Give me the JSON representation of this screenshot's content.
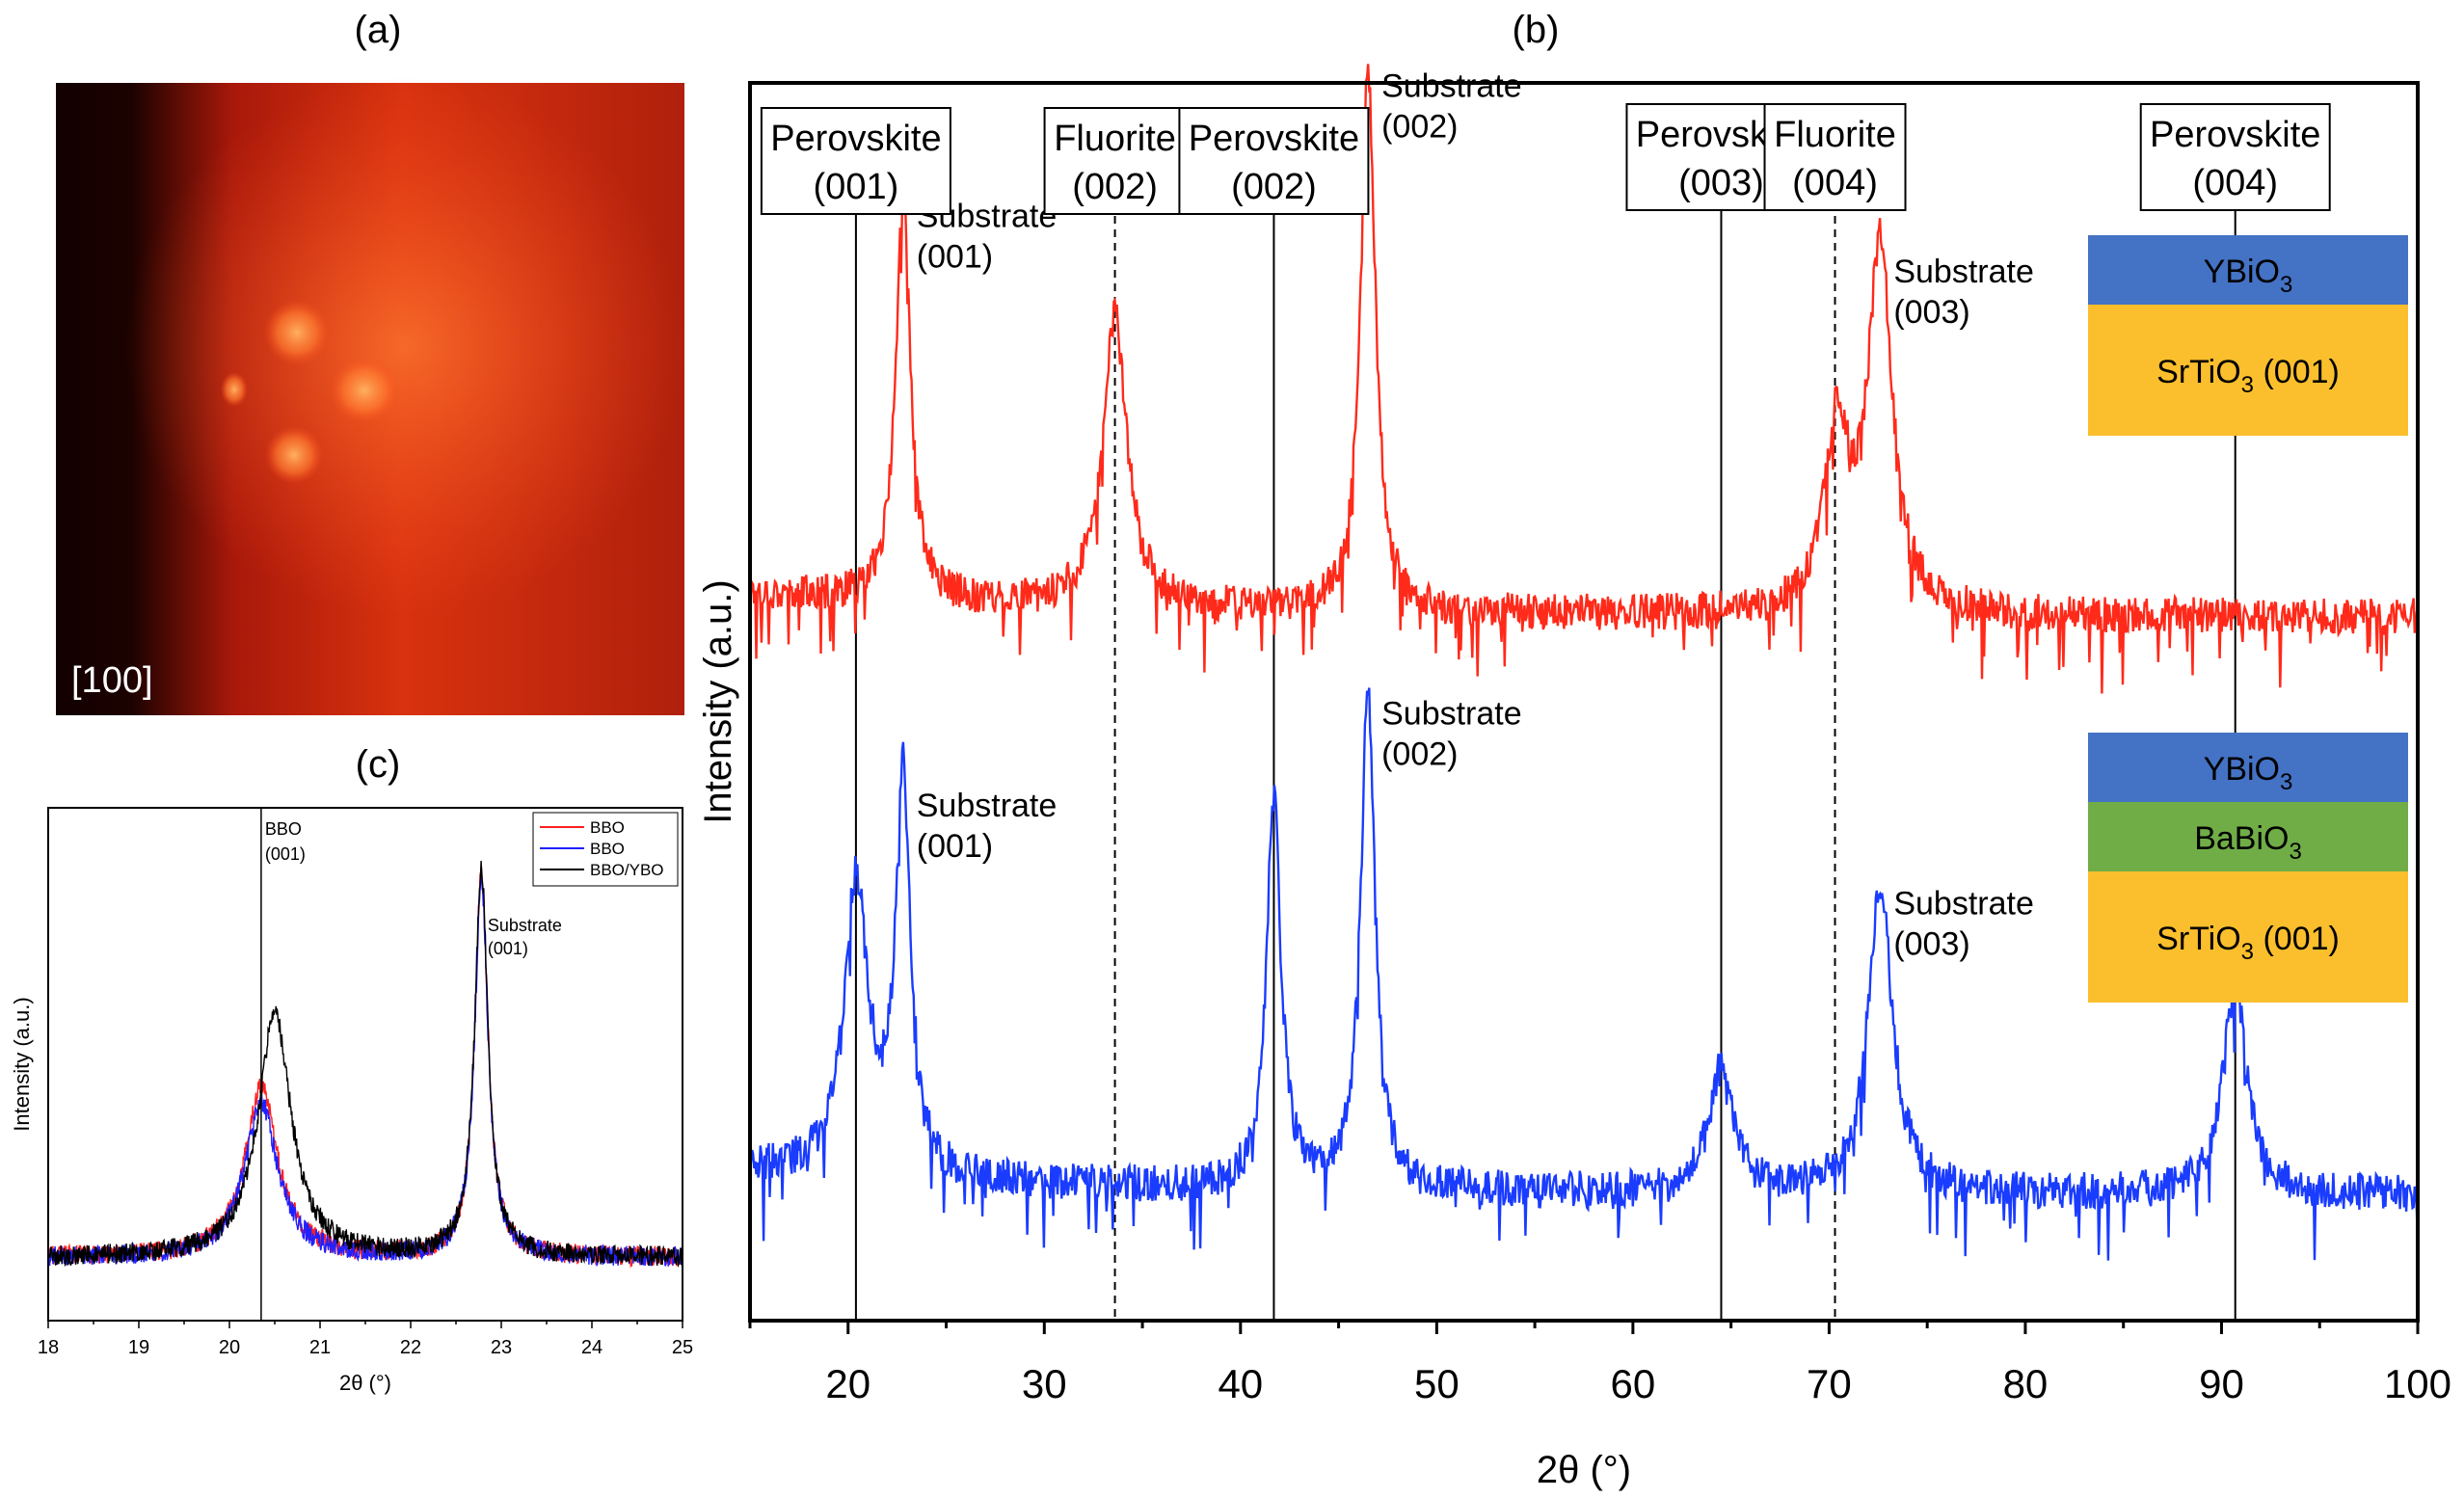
{
  "panel_a": {
    "label": "(a)",
    "direction": "[100]",
    "colors": {
      "dark": "#1a0000",
      "mid": "#c8200a",
      "spot": "#ff7a2a"
    }
  },
  "chart_data": [
    {
      "id": "b",
      "panel_label": "(b)",
      "type": "line",
      "xlabel": "2θ (°)",
      "ylabel": "Intensity (a.u.)",
      "xlim": [
        15,
        100
      ],
      "xticks": [
        20,
        30,
        40,
        50,
        60,
        70,
        80,
        90,
        100
      ],
      "reference_lines": [
        {
          "x": 20.4,
          "style": "solid",
          "name": "Perovskite",
          "index": "(001)"
        },
        {
          "x": 33.6,
          "style": "dashed",
          "name": "Fluorite",
          "index": "(002)"
        },
        {
          "x": 41.7,
          "style": "solid",
          "name": "Perovskite",
          "index": "(002)"
        },
        {
          "x": 64.5,
          "style": "solid",
          "name": "Perovskite",
          "index": "(003)"
        },
        {
          "x": 70.3,
          "style": "dashed",
          "name": "Fluorite",
          "index": "(004)"
        },
        {
          "x": 90.7,
          "style": "solid",
          "name": "Perovskite",
          "index": "(004)"
        }
      ],
      "series": [
        {
          "name": "YBiO3/SrTiO3 (001)",
          "color": "#ff2a1a",
          "peaks": [
            {
              "x": 22.8,
              "height": 1.0,
              "label": "Substrate",
              "index": "(001)"
            },
            {
              "x": 33.6,
              "height": 0.72
            },
            {
              "x": 46.5,
              "height": 1.35,
              "label": "Substrate",
              "index": "(002)"
            },
            {
              "x": 70.4,
              "height": 0.45
            },
            {
              "x": 72.6,
              "height": 0.9,
              "label": "Substrate",
              "index": "(003)"
            }
          ],
          "layers": [
            {
              "text": "YBiO",
              "sub": "3",
              "suffix": "",
              "color": "#4472c4"
            },
            {
              "text": "SrTiO",
              "sub": "3",
              "suffix": " (001)",
              "color": "#fbbf2d"
            }
          ]
        },
        {
          "name": "YBiO3/BaBiO3/SrTiO3 (001)",
          "color": "#1a3cff",
          "peaks": [
            {
              "x": 20.4,
              "height": 0.7
            },
            {
              "x": 22.8,
              "height": 0.95,
              "label": "Substrate",
              "index": "(001)"
            },
            {
              "x": 41.7,
              "height": 0.95
            },
            {
              "x": 46.5,
              "height": 1.2,
              "label": "Substrate",
              "index": "(002)"
            },
            {
              "x": 64.5,
              "height": 0.3
            },
            {
              "x": 72.6,
              "height": 0.75,
              "label": "Substrate",
              "index": "(003)"
            },
            {
              "x": 90.7,
              "height": 0.5
            }
          ],
          "layers": [
            {
              "text": "YBiO",
              "sub": "3",
              "suffix": "",
              "color": "#4472c4"
            },
            {
              "text": "BaBiO",
              "sub": "3",
              "suffix": "",
              "color": "#70ad47"
            },
            {
              "text": "SrTiO",
              "sub": "3",
              "suffix": " (001)",
              "color": "#fbbf2d"
            }
          ]
        }
      ]
    },
    {
      "id": "c",
      "panel_label": "(c)",
      "type": "line",
      "xlabel": "2θ (°)",
      "ylabel": "Intensity (a.u.)",
      "xlim": [
        18,
        25
      ],
      "xticks": [
        18,
        19,
        20,
        21,
        22,
        23,
        24,
        25
      ],
      "reference_line": {
        "x": 20.35,
        "label": "BBO",
        "index": "(001)"
      },
      "substrate_label": {
        "text": "Substrate",
        "index": "(001)"
      },
      "legend": {
        "position": "top-right"
      },
      "series": [
        {
          "name": "BBO",
          "color": "#ff2020",
          "peaks": [
            {
              "x": 20.35,
              "height": 0.42
            },
            {
              "x": 22.78,
              "height": 0.95
            }
          ]
        },
        {
          "name": "BBO",
          "color": "#2020ff",
          "peaks": [
            {
              "x": 20.35,
              "height": 0.38
            },
            {
              "x": 22.78,
              "height": 0.93
            }
          ]
        },
        {
          "name": "BBO/YBO",
          "color": "#000000",
          "peaks": [
            {
              "x": 20.5,
              "height": 0.6
            },
            {
              "x": 22.78,
              "height": 0.96
            }
          ]
        }
      ]
    }
  ]
}
